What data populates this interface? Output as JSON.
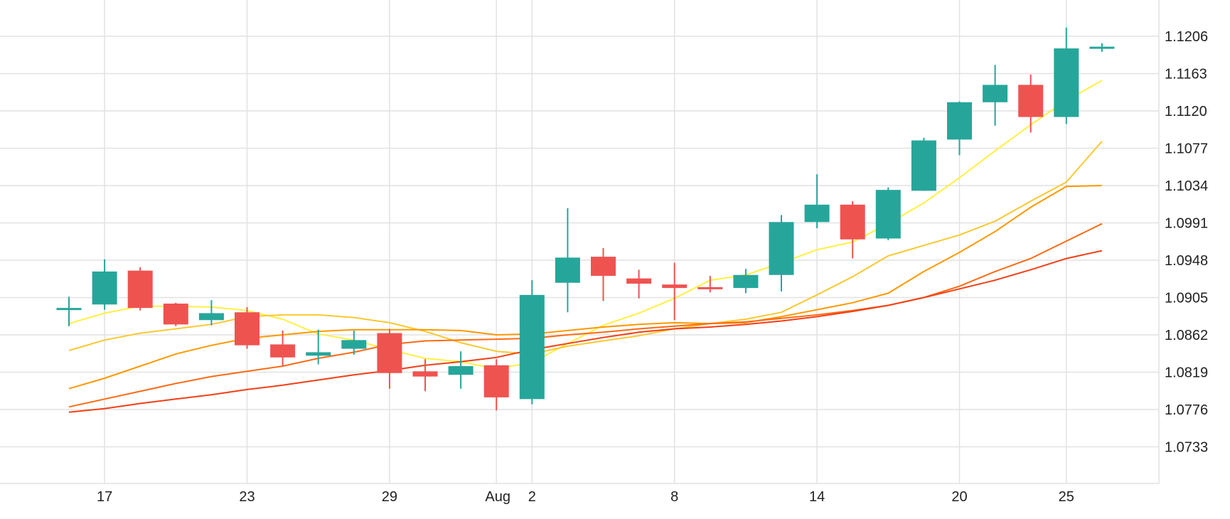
{
  "chart_data": {
    "type": "candlestick",
    "x_ticks": [
      "17",
      "23",
      "29",
      "Aug",
      "2",
      "8",
      "14",
      "20",
      "25"
    ],
    "y_ticks": [
      "1.1206",
      "1.1163",
      "1.1120",
      "1.1077",
      "1.1034",
      "1.0991",
      "1.0948",
      "1.0905",
      "1.0862",
      "1.0819",
      "1.0776",
      "1.0733"
    ],
    "ylim": [
      1.069,
      1.1247
    ],
    "grid": true,
    "colors": {
      "up": "#26a69a",
      "down": "#ef5350",
      "grid": "#e2e2e2"
    },
    "candles": [
      {
        "date": "Jul 16",
        "open": 1.0893,
        "high": 1.0906,
        "low": 1.0872,
        "close": 1.0893
      },
      {
        "date": "Jul 17",
        "open": 1.0897,
        "high": 1.0949,
        "low": 1.0891,
        "close": 1.0935
      },
      {
        "date": "Jul 18",
        "open": 1.0936,
        "high": 1.094,
        "low": 1.089,
        "close": 1.0893
      },
      {
        "date": "Jul 19",
        "open": 1.0898,
        "high": 1.0899,
        "low": 1.0872,
        "close": 1.0874
      },
      {
        "date": "Jul 22",
        "open": 1.0879,
        "high": 1.0902,
        "low": 1.0873,
        "close": 1.0887
      },
      {
        "date": "Jul 23",
        "open": 1.0888,
        "high": 1.0894,
        "low": 1.0846,
        "close": 1.085
      },
      {
        "date": "Jul 24",
        "open": 1.0851,
        "high": 1.0867,
        "low": 1.0826,
        "close": 1.0836
      },
      {
        "date": "Jul 25",
        "open": 1.0838,
        "high": 1.0868,
        "low": 1.0828,
        "close": 1.0842
      },
      {
        "date": "Jul 26",
        "open": 1.0846,
        "high": 1.0867,
        "low": 1.0839,
        "close": 1.0856
      },
      {
        "date": "Jul 29",
        "open": 1.0864,
        "high": 1.0869,
        "low": 1.08,
        "close": 1.0818
      },
      {
        "date": "Jul 30",
        "open": 1.082,
        "high": 1.0834,
        "low": 1.0797,
        "close": 1.0814
      },
      {
        "date": "Jul 31",
        "open": 1.0816,
        "high": 1.0843,
        "low": 1.08,
        "close": 1.0826
      },
      {
        "date": "Aug 1",
        "open": 1.0827,
        "high": 1.0834,
        "low": 1.0775,
        "close": 1.079
      },
      {
        "date": "Aug 2",
        "open": 1.0788,
        "high": 1.0925,
        "low": 1.0782,
        "close": 1.0908
      },
      {
        "date": "Aug 5",
        "open": 1.0922,
        "high": 1.1008,
        "low": 1.0888,
        "close": 1.0951
      },
      {
        "date": "Aug 6",
        "open": 1.0952,
        "high": 1.0962,
        "low": 1.0901,
        "close": 1.093
      },
      {
        "date": "Aug 7",
        "open": 1.0927,
        "high": 1.0937,
        "low": 1.0904,
        "close": 1.0921
      },
      {
        "date": "Aug 8",
        "open": 1.092,
        "high": 1.0945,
        "low": 1.0879,
        "close": 1.0916
      },
      {
        "date": "Aug 9",
        "open": 1.0917,
        "high": 1.093,
        "low": 1.0911,
        "close": 1.0915
      },
      {
        "date": "Aug 12",
        "open": 1.0916,
        "high": 1.0938,
        "low": 1.091,
        "close": 1.0931
      },
      {
        "date": "Aug 13",
        "open": 1.0931,
        "high": 1.1,
        "low": 1.0912,
        "close": 1.0992
      },
      {
        "date": "Aug 14",
        "open": 1.0992,
        "high": 1.1047,
        "low": 1.0985,
        "close": 1.1012
      },
      {
        "date": "Aug 15",
        "open": 1.1012,
        "high": 1.1016,
        "low": 1.095,
        "close": 1.0972
      },
      {
        "date": "Aug 16",
        "open": 1.0973,
        "high": 1.1032,
        "low": 1.0971,
        "close": 1.1029
      },
      {
        "date": "Aug 19",
        "open": 1.1028,
        "high": 1.1089,
        "low": 1.1028,
        "close": 1.1086
      },
      {
        "date": "Aug 20",
        "open": 1.1087,
        "high": 1.1131,
        "low": 1.1069,
        "close": 1.113
      },
      {
        "date": "Aug 21",
        "open": 1.113,
        "high": 1.1173,
        "low": 1.1103,
        "close": 1.115
      },
      {
        "date": "Aug 22",
        "open": 1.115,
        "high": 1.1162,
        "low": 1.1095,
        "close": 1.1113
      },
      {
        "date": "Aug 23",
        "open": 1.1113,
        "high": 1.1216,
        "low": 1.1105,
        "close": 1.1192
      },
      {
        "date": "Aug 26",
        "open": 1.1192,
        "high": 1.1198,
        "low": 1.1188,
        "close": 1.1194
      }
    ],
    "moving_averages": [
      {
        "color": "#fff040",
        "values": [
          1.0875,
          1.0887,
          1.0895,
          1.0895,
          1.0894,
          1.089,
          1.088,
          1.0863,
          1.0856,
          1.0845,
          1.0835,
          1.0831,
          1.0823,
          1.083,
          1.0852,
          1.0873,
          1.0887,
          1.0904,
          1.0925,
          1.0931,
          1.0945,
          1.096,
          1.0969,
          1.099,
          1.1014,
          1.1043,
          1.1074,
          1.1104,
          1.1132,
          1.1155
        ]
      },
      {
        "color": "#f9c92f",
        "values": [
          1.0844,
          1.0856,
          1.0864,
          1.0869,
          1.0874,
          1.0883,
          1.0885,
          1.0885,
          1.0882,
          1.0876,
          1.0866,
          1.0853,
          1.0843,
          1.084,
          1.0849,
          1.0855,
          1.0861,
          1.0869,
          1.0875,
          1.088,
          1.0888,
          1.0908,
          1.0929,
          1.0953,
          1.0965,
          1.0977,
          1.0993,
          1.1016,
          1.1038,
          1.1085
        ]
      },
      {
        "color": "#ff9900",
        "values": [
          1.08,
          1.0812,
          1.0826,
          1.084,
          1.085,
          1.0858,
          1.0862,
          1.0866,
          1.0868,
          1.0868,
          1.0868,
          1.0867,
          1.0862,
          1.0863,
          1.0867,
          1.0871,
          1.0874,
          1.0876,
          1.0875,
          1.0876,
          1.0883,
          1.0891,
          1.0899,
          1.091,
          1.0935,
          1.0957,
          1.0981,
          1.1009,
          1.1033,
          1.1034
        ]
      },
      {
        "color": "#ff6a13",
        "values": [
          1.0779,
          1.0788,
          1.0797,
          1.0806,
          1.0814,
          1.082,
          1.0826,
          1.0835,
          1.0842,
          1.0851,
          1.0855,
          1.0856,
          1.0857,
          1.0858,
          1.0862,
          1.0865,
          1.0869,
          1.0872,
          1.0875,
          1.0877,
          1.0881,
          1.0885,
          1.089,
          1.0896,
          1.0905,
          1.0918,
          1.0935,
          1.095,
          1.097,
          1.099
        ]
      },
      {
        "color": "#f23f16",
        "values": [
          1.0773,
          1.0777,
          1.0783,
          1.0788,
          1.0793,
          1.0799,
          1.0804,
          1.081,
          1.0816,
          1.0821,
          1.0827,
          1.0831,
          1.0836,
          1.0845,
          1.0852,
          1.0859,
          1.0865,
          1.0869,
          1.0871,
          1.0874,
          1.0878,
          1.0883,
          1.0889,
          1.0896,
          1.0905,
          1.0915,
          1.0925,
          1.0937,
          1.095,
          1.0959
        ]
      }
    ]
  }
}
